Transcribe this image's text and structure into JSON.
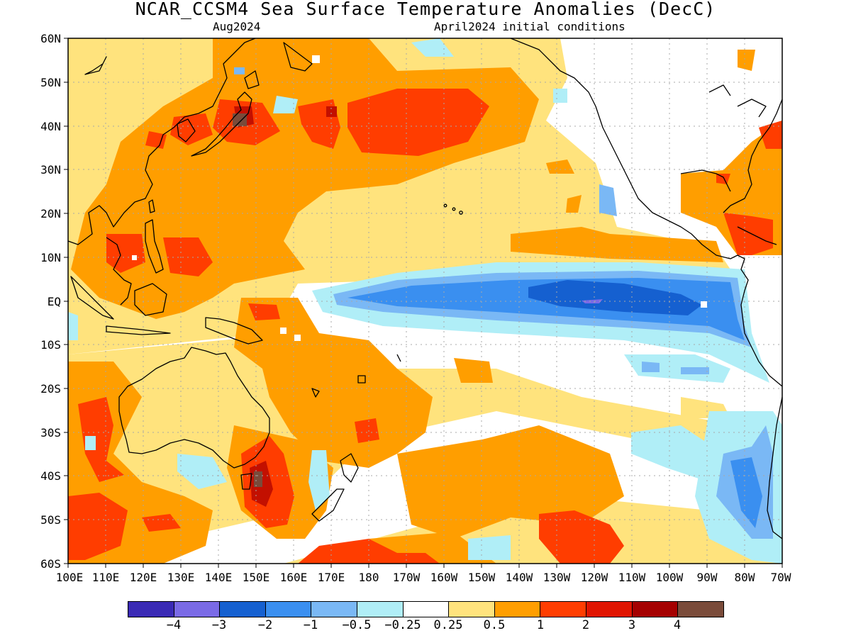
{
  "title": "NCAR_CCSM4 Sea Surface Temperature Anomalies (DecC)",
  "valid_month": "Aug2024",
  "initial_conditions": "April2024 initial conditions",
  "lat_labels": [
    "60N",
    "50N",
    "40N",
    "30N",
    "20N",
    "10N",
    "EQ",
    "10S",
    "20S",
    "30S",
    "40S",
    "50S",
    "60S"
  ],
  "lon_labels": [
    "100E",
    "110E",
    "120E",
    "130E",
    "140E",
    "150E",
    "160E",
    "170E",
    "180",
    "170W",
    "160W",
    "150W",
    "140W",
    "130W",
    "120W",
    "110W",
    "100W",
    "90W",
    "80W",
    "70W"
  ],
  "colorbar": {
    "colors": [
      "#3a2ab5",
      "#7a6ae6",
      "#1560d0",
      "#3a8ff0",
      "#7ab8f5",
      "#b0eef7",
      "#ffffff",
      "#ffe37d",
      "#ff9e00",
      "#ff3d00",
      "#e01400",
      "#a50000",
      "#7a4b3a"
    ],
    "labels": [
      "-4",
      "-3",
      "-2",
      "-1",
      "-0.5",
      "-0.25",
      "0.25",
      "0.5",
      "1",
      "2",
      "3",
      "4"
    ]
  },
  "colors": {
    "land_outline": "#000000",
    "grid": "#a8a8a8",
    "neutral": "#ffffff",
    "light_warm": "#ffe37d",
    "warm": "#ff9e00",
    "hot": "#ff3d00",
    "very_hot": "#c31000",
    "extreme": "#7a4b3a",
    "light_cool": "#b0eef7",
    "cool": "#7ab8f5",
    "cold": "#3a8ff0",
    "very_cold": "#1560d0",
    "extreme_cold": "#7a6ae6"
  }
}
